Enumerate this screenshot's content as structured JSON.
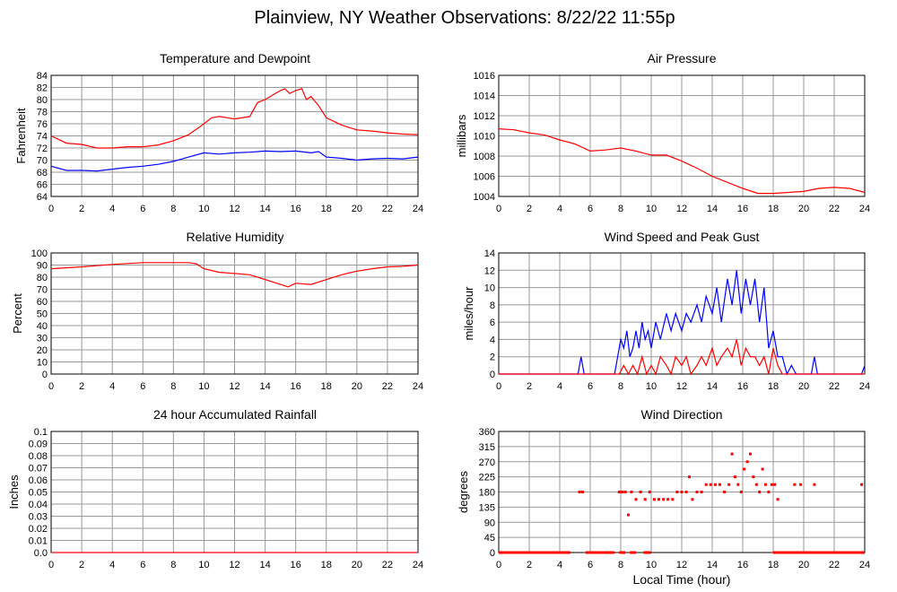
{
  "title": "Plainview, NY Weather Observations: 8/22/22 11:55p",
  "xlabel_bottom": "Local Time (hour)",
  "colors": {
    "primary": "#ff0000",
    "secondary": "#0000ff",
    "grid": "#999999"
  },
  "chart_data": [
    {
      "id": "temp",
      "type": "line",
      "title": "Temperature and Dewpoint",
      "ylabel": "Fahrenheit",
      "xlim": [
        0,
        24
      ],
      "ylim": [
        64,
        84
      ],
      "xticks": [
        0,
        2,
        4,
        6,
        8,
        10,
        12,
        14,
        16,
        18,
        20,
        22,
        24
      ],
      "yticks": [
        64,
        66,
        68,
        70,
        72,
        74,
        76,
        78,
        80,
        82,
        84
      ],
      "grid": true,
      "series": [
        {
          "color": "#ff0000",
          "x": [
            0,
            1,
            2,
            3,
            4,
            5,
            6,
            7,
            8,
            9,
            10,
            10.5,
            11,
            12,
            13,
            13.5,
            14,
            15,
            15.3,
            15.6,
            16,
            16.4,
            16.7,
            17,
            17.5,
            18,
            19,
            20,
            21,
            22,
            23,
            24
          ],
          "y": [
            74,
            72.8,
            72.6,
            72,
            72,
            72.2,
            72.2,
            72.5,
            73.2,
            74.2,
            76,
            77,
            77.2,
            76.8,
            77.2,
            79.5,
            80,
            81.5,
            81.8,
            81,
            81.5,
            81.8,
            80,
            80.5,
            79,
            77,
            75.8,
            75,
            74.8,
            74.5,
            74.3,
            74.2
          ]
        },
        {
          "color": "#0000ff",
          "x": [
            0,
            1,
            2,
            3,
            4,
            5,
            6,
            7,
            8,
            9,
            10,
            11,
            12,
            13,
            14,
            15,
            16,
            17,
            17.5,
            18,
            19,
            20,
            21,
            22,
            23,
            24
          ],
          "y": [
            69,
            68.3,
            68.3,
            68.2,
            68.5,
            68.8,
            69,
            69.3,
            69.8,
            70.5,
            71.2,
            71,
            71.2,
            71.3,
            71.5,
            71.4,
            71.5,
            71.2,
            71.4,
            70.5,
            70.3,
            70,
            70.2,
            70.3,
            70.2,
            70.5
          ]
        }
      ]
    },
    {
      "id": "pressure",
      "type": "line",
      "title": "Air Pressure",
      "ylabel": "millibars",
      "xlim": [
        0,
        24
      ],
      "ylim": [
        1004,
        1016
      ],
      "xticks": [
        0,
        2,
        4,
        6,
        8,
        10,
        12,
        14,
        16,
        18,
        20,
        22,
        24
      ],
      "yticks": [
        1004,
        1006,
        1008,
        1010,
        1012,
        1014,
        1016
      ],
      "grid": true,
      "series": [
        {
          "color": "#ff0000",
          "x": [
            0,
            1,
            2,
            3,
            4,
            5,
            6,
            7,
            8,
            9,
            10,
            11,
            12,
            13,
            14,
            15,
            16,
            17,
            18,
            19,
            20,
            21,
            22,
            23,
            24
          ],
          "y": [
            1010.7,
            1010.6,
            1010.3,
            1010.1,
            1009.6,
            1009.2,
            1008.5,
            1008.6,
            1008.8,
            1008.5,
            1008.1,
            1008.1,
            1007.5,
            1006.8,
            1006,
            1005.4,
            1004.8,
            1004.3,
            1004.3,
            1004.4,
            1004.5,
            1004.8,
            1004.9,
            1004.8,
            1004.4
          ]
        }
      ]
    },
    {
      "id": "humidity",
      "type": "line",
      "title": "Relative Humidity",
      "ylabel": "Percent",
      "xlim": [
        0,
        24
      ],
      "ylim": [
        0,
        100
      ],
      "xticks": [
        0,
        2,
        4,
        6,
        8,
        10,
        12,
        14,
        16,
        18,
        20,
        22,
        24
      ],
      "yticks": [
        0,
        10,
        20,
        30,
        40,
        50,
        60,
        70,
        80,
        90,
        100
      ],
      "grid": true,
      "series": [
        {
          "color": "#ff0000",
          "x": [
            0,
            2,
            4,
            6,
            8,
            9,
            9.5,
            10,
            11,
            12,
            13,
            14,
            15,
            15.5,
            16,
            17,
            18,
            19,
            20,
            21,
            22,
            23,
            24
          ],
          "y": [
            87,
            88.5,
            90.5,
            92,
            92,
            92,
            91,
            87,
            84,
            83,
            82,
            78,
            74,
            72,
            75,
            74,
            78,
            82,
            85,
            87,
            88.5,
            89,
            90
          ]
        }
      ]
    },
    {
      "id": "wind",
      "type": "line",
      "title": "Wind Speed and Peak Gust",
      "ylabel": "miles/hour",
      "xlim": [
        0,
        24
      ],
      "ylim": [
        0,
        14
      ],
      "xticks": [
        0,
        2,
        4,
        6,
        8,
        10,
        12,
        14,
        16,
        18,
        20,
        22,
        24
      ],
      "yticks": [
        0,
        2,
        4,
        6,
        8,
        10,
        12,
        14
      ],
      "grid": true,
      "series": [
        {
          "color": "#0000ff",
          "x": [
            0,
            5.2,
            5.4,
            5.6,
            7.6,
            7.8,
            8,
            8.2,
            8.4,
            8.6,
            8.8,
            9,
            9.2,
            9.4,
            9.6,
            9.8,
            10,
            10.3,
            10.6,
            11,
            11.3,
            11.6,
            12,
            12.3,
            12.6,
            13,
            13.3,
            13.6,
            14,
            14.3,
            14.6,
            15,
            15.3,
            15.6,
            15.9,
            16.2,
            16.5,
            16.8,
            17.1,
            17.4,
            17.7,
            18,
            18.3,
            18.6,
            18.9,
            19.2,
            19.5,
            19.8,
            20.5,
            20.7,
            20.9,
            23.8,
            24
          ],
          "y": [
            0,
            0,
            2,
            0,
            0,
            2,
            4,
            3,
            5,
            2,
            3,
            5,
            3,
            6,
            4,
            5,
            3,
            6,
            4,
            7,
            5,
            7,
            5,
            7,
            6,
            8,
            6,
            9,
            7,
            10,
            6,
            11,
            8,
            12,
            7,
            11,
            8,
            11,
            6,
            10,
            3,
            5,
            2,
            2,
            0,
            1,
            0,
            0,
            0,
            2,
            0,
            0,
            1
          ]
        },
        {
          "color": "#ff0000",
          "x": [
            0,
            7.9,
            8.2,
            8.5,
            8.8,
            9.1,
            9.4,
            9.7,
            10,
            10.3,
            10.6,
            11,
            11.3,
            11.6,
            12,
            12.3,
            12.6,
            13,
            13.3,
            13.6,
            14,
            14.3,
            14.6,
            15,
            15.3,
            15.6,
            15.9,
            16.2,
            16.5,
            16.8,
            17.1,
            17.4,
            17.7,
            18,
            18.3,
            18.6,
            24
          ],
          "y": [
            0,
            0,
            1,
            0,
            1,
            0,
            2,
            0,
            1,
            0,
            2,
            1,
            0,
            2,
            1,
            2,
            0,
            1,
            2,
            1,
            3,
            1,
            2,
            3,
            2,
            4,
            1,
            3,
            2,
            2,
            1,
            2,
            0,
            3,
            1,
            0,
            0
          ]
        }
      ]
    },
    {
      "id": "rain",
      "type": "line",
      "title": "24 hour Accumulated Rainfall",
      "ylabel": "Inches",
      "xlim": [
        0,
        24
      ],
      "ylim": [
        0,
        0.1
      ],
      "xticks": [
        0,
        2,
        4,
        6,
        8,
        10,
        12,
        14,
        16,
        18,
        20,
        22,
        24
      ],
      "yticks": [
        0.0,
        0.01,
        0.02,
        0.03,
        0.04,
        0.05,
        0.06,
        0.07,
        0.08,
        0.09,
        0.1
      ],
      "ytick_labels": [
        "0.0",
        "0.01",
        "0.02",
        "0.03",
        "0.04",
        "0.05",
        "0.06",
        "0.07",
        "0.08",
        "0.09",
        "0.1"
      ],
      "grid": true,
      "series": [
        {
          "color": "#ff0000",
          "x": [
            0,
            24
          ],
          "y": [
            0,
            0
          ]
        }
      ]
    },
    {
      "id": "direction",
      "type": "scatter",
      "title": "Wind Direction",
      "ylabel": "degrees",
      "xlim": [
        0,
        24
      ],
      "ylim": [
        0,
        360
      ],
      "xticks": [
        0,
        2,
        4,
        6,
        8,
        10,
        12,
        14,
        16,
        18,
        20,
        22,
        24
      ],
      "yticks": [
        0,
        45,
        90,
        135,
        180,
        225,
        270,
        315,
        360
      ],
      "grid": true,
      "series": [
        {
          "color": "#ff0000",
          "points": [
            [
              5.3,
              180
            ],
            [
              5.5,
              180
            ],
            [
              7.9,
              180
            ],
            [
              8.1,
              180
            ],
            [
              8.3,
              180
            ],
            [
              8.5,
              112
            ],
            [
              8.7,
              180
            ],
            [
              9.0,
              158
            ],
            [
              9.3,
              180
            ],
            [
              9.6,
              158
            ],
            [
              9.9,
              180
            ],
            [
              10.2,
              158
            ],
            [
              10.5,
              158
            ],
            [
              10.8,
              158
            ],
            [
              11.1,
              158
            ],
            [
              11.4,
              158
            ],
            [
              11.7,
              180
            ],
            [
              12.0,
              180
            ],
            [
              12.3,
              180
            ],
            [
              12.5,
              225
            ],
            [
              12.7,
              158
            ],
            [
              13.0,
              180
            ],
            [
              13.3,
              180
            ],
            [
              13.6,
              202
            ],
            [
              13.9,
              202
            ],
            [
              14.2,
              202
            ],
            [
              14.5,
              202
            ],
            [
              14.8,
              180
            ],
            [
              15.1,
              202
            ],
            [
              15.3,
              293
            ],
            [
              15.5,
              225
            ],
            [
              15.7,
              202
            ],
            [
              15.9,
              180
            ],
            [
              16.1,
              248
            ],
            [
              16.3,
              270
            ],
            [
              16.5,
              293
            ],
            [
              16.7,
              225
            ],
            [
              16.9,
              202
            ],
            [
              17.1,
              180
            ],
            [
              17.3,
              248
            ],
            [
              17.5,
              202
            ],
            [
              17.7,
              180
            ],
            [
              17.9,
              202
            ],
            [
              18.1,
              202
            ],
            [
              18.3,
              158
            ],
            [
              19.4,
              202
            ],
            [
              19.8,
              202
            ],
            [
              20.7,
              202
            ],
            [
              23.8,
              202
            ]
          ],
          "baseline": [
            0.0,
            4.7,
            5.7,
            7.6,
            7.9,
            8.3,
            8.6,
            9.0,
            9.5,
            10.0,
            18.0,
            24.0
          ]
        }
      ]
    }
  ]
}
